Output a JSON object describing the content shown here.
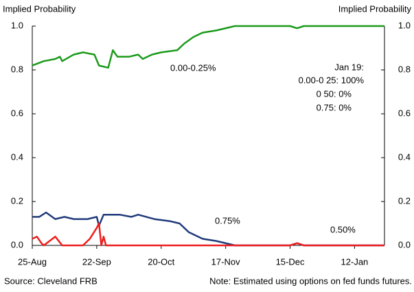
{
  "chart_data": {
    "type": "line",
    "ylabel": "Implied Probability",
    "y2label": "Implied Probability",
    "xlim": [
      0,
      153
    ],
    "xticks": [
      {
        "value": 0,
        "label": "25-Aug"
      },
      {
        "value": 28,
        "label": "22-Sep"
      },
      {
        "value": 56,
        "label": "20-Oct"
      },
      {
        "value": 84,
        "label": "17-Nov"
      },
      {
        "value": 112,
        "label": "15-Dec"
      },
      {
        "value": 140,
        "label": "12-Jan"
      }
    ],
    "ylim": [
      0,
      1
    ],
    "yticks": [
      {
        "value": 0,
        "label": "0.0"
      },
      0.2,
      0.4,
      0.6,
      0.8,
      {
        "value": 1,
        "label": "1.0"
      }
    ],
    "y2lim": [
      0,
      1
    ],
    "y2ticks": [
      {
        "value": 0,
        "label": "0.0"
      },
      0.2,
      0.4,
      0.6,
      0.8,
      {
        "value": 1,
        "label": "1.0"
      }
    ],
    "series": [
      {
        "name": "0.00-0.25%",
        "color": "#1a9a1a",
        "x": [
          0,
          5,
          10,
          12,
          13,
          18,
          22,
          27,
          29,
          33,
          35,
          37,
          42,
          46,
          48,
          52,
          56,
          63,
          66,
          70,
          74,
          80,
          88,
          112,
          115,
          118,
          153
        ],
        "values": [
          0.82,
          0.84,
          0.85,
          0.86,
          0.84,
          0.87,
          0.88,
          0.87,
          0.82,
          0.81,
          0.89,
          0.86,
          0.86,
          0.87,
          0.85,
          0.87,
          0.88,
          0.89,
          0.92,
          0.95,
          0.97,
          0.98,
          1.0,
          1.0,
          0.99,
          1.0,
          1.0
        ]
      },
      {
        "name": "0.75%",
        "color": "#1f3a7a",
        "x": [
          0,
          3,
          6,
          10,
          14,
          18,
          24,
          28,
          29,
          31,
          38,
          43,
          46,
          53,
          60,
          64,
          68,
          74,
          80,
          88,
          112,
          115,
          118,
          153
        ],
        "values": [
          0.13,
          0.13,
          0.15,
          0.12,
          0.13,
          0.12,
          0.12,
          0.13,
          0.09,
          0.14,
          0.14,
          0.13,
          0.14,
          0.12,
          0.11,
          0.1,
          0.06,
          0.03,
          0.02,
          0.0,
          0.0,
          0.01,
          0.0,
          0.0
        ]
      },
      {
        "name": "0.50%",
        "color": "#ee1c1c",
        "x": [
          0,
          2,
          4,
          5,
          10,
          13,
          22,
          25,
          28,
          29,
          30,
          31,
          32,
          112,
          115,
          118,
          153
        ],
        "values": [
          0.03,
          0.04,
          0.01,
          0.0,
          0.04,
          0.0,
          0.0,
          0.03,
          0.08,
          0.1,
          0.0,
          0.04,
          0.0,
          0.0,
          0.01,
          0.0,
          0.0
        ]
      }
    ],
    "annotation": {
      "title": "Jan 19:",
      "lines": [
        "0.00-0 25: 100%",
        "0 50: 0%",
        "0.75: 0%"
      ]
    },
    "source": "Source: Cleveland FRB",
    "note": "Note: Estimated using options on fed funds futures."
  }
}
